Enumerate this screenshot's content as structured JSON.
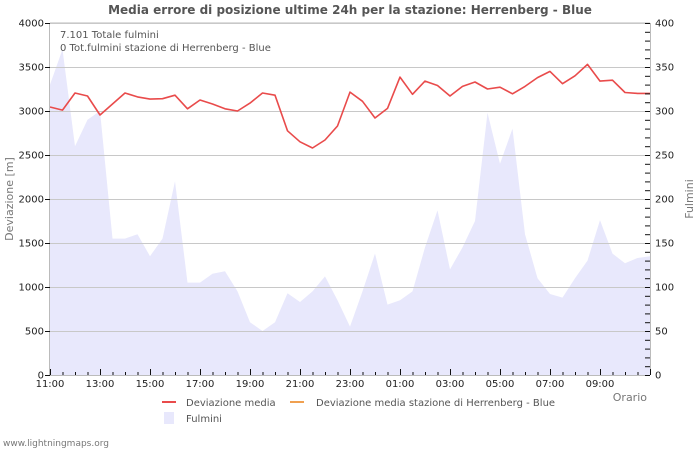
{
  "chart_data": {
    "type": "line",
    "title": "Media errore di posizione ultime 24h per la stazione: Herrenberg - Blue",
    "xlabel": "Orario",
    "ylabel": "Deviazione  [m]",
    "y2label": "Fulmini",
    "ylim": [
      0,
      4000
    ],
    "y2lim": [
      0,
      400
    ],
    "grid": true,
    "x_tick_labels": [
      "11:00",
      "13:00",
      "15:00",
      "17:00",
      "19:00",
      "21:00",
      "23:00",
      "01:00",
      "03:00",
      "05:00",
      "07:00",
      "09:00"
    ],
    "y_ticks": [
      0,
      500,
      1000,
      1500,
      2000,
      2500,
      3000,
      3500,
      4000
    ],
    "y2_ticks": [
      0,
      50,
      100,
      150,
      200,
      250,
      300,
      350,
      400
    ],
    "x_step_minutes": 30,
    "x_start": "11:00",
    "info_lines": [
      "7.101 Totale fulmini",
      "0 Tot.fulmini stazione di Herrenberg - Blue"
    ],
    "legend": [
      {
        "label": "Deviazione media",
        "color": "#e94b4b",
        "kind": "line"
      },
      {
        "label": "Deviazione media stazione di Herrenberg - Blue",
        "color": "#f0a050",
        "kind": "line"
      },
      {
        "label": "Fulmini",
        "color": "#e8e8fc",
        "kind": "area"
      }
    ],
    "series": [
      {
        "name": "Deviazione media",
        "axis": "left",
        "color": "#e94b4b",
        "values": [
          3045,
          3010,
          3205,
          3170,
          2955,
          3080,
          3205,
          3160,
          3135,
          3140,
          3180,
          3025,
          3125,
          3080,
          3025,
          3000,
          3090,
          3205,
          3180,
          2775,
          2650,
          2580,
          2670,
          2830,
          3215,
          3110,
          2920,
          3030,
          3385,
          3190,
          3340,
          3290,
          3170,
          3280,
          3330,
          3250,
          3270,
          3195,
          3280,
          3380,
          3450,
          3310,
          3400,
          3530,
          3340,
          3350,
          3210,
          3200,
          3200
        ]
      },
      {
        "name": "Deviazione media stazione di Herrenberg - Blue",
        "axis": "left",
        "color": "#f0a050",
        "values": []
      },
      {
        "name": "Fulmini",
        "axis": "right",
        "type": "area",
        "color": "#e8e8fc",
        "values": [
          330,
          370,
          260,
          290,
          300,
          155,
          155,
          160,
          135,
          155,
          220,
          105,
          105,
          115,
          118,
          95,
          60,
          50,
          60,
          93,
          83,
          95,
          112,
          85,
          55,
          95,
          138,
          80,
          85,
          95,
          145,
          187,
          120,
          145,
          175,
          298,
          240,
          280,
          160,
          110,
          92,
          88,
          110,
          130,
          176,
          138,
          127,
          133,
          135
        ]
      }
    ]
  },
  "footer": "www.lightningmaps.org"
}
